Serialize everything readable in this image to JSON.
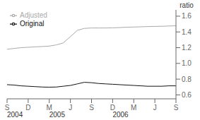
{
  "chart_data": {
    "type": "line",
    "y_label": "ratio",
    "x": [
      0,
      0.33,
      0.66,
      1,
      1.33,
      1.66,
      2,
      2.33,
      2.66,
      3,
      3.33,
      3.66,
      4,
      4.33,
      4.66,
      5,
      5.33,
      5.66,
      6,
      6.33,
      6.66,
      7,
      7.33,
      7.66,
      8
    ],
    "series": [
      {
        "name": "Original",
        "color": "#111111",
        "values": [
          0.73,
          0.725,
          0.715,
          0.71,
          0.705,
          0.7,
          0.698,
          0.7,
          0.71,
          0.72,
          0.74,
          0.76,
          0.755,
          0.745,
          0.74,
          0.735,
          0.73,
          0.725,
          0.72,
          0.715,
          0.71,
          0.71,
          0.71,
          0.715,
          0.715
        ]
      },
      {
        "name": "Adjusted",
        "color": "#aaaaaa",
        "values": [
          1.18,
          1.19,
          1.2,
          1.205,
          1.21,
          1.215,
          1.22,
          1.235,
          1.26,
          1.34,
          1.42,
          1.445,
          1.45,
          1.45,
          1.45,
          1.452,
          1.455,
          1.46,
          1.462,
          1.465,
          1.468,
          1.47,
          1.472,
          1.475,
          1.478
        ]
      }
    ],
    "xlim": [
      0,
      8
    ],
    "xticks": [
      {
        "value": 0,
        "label": "S"
      },
      {
        "value": 1,
        "label": "D"
      },
      {
        "value": 2,
        "label": "M"
      },
      {
        "value": 3,
        "label": "J"
      },
      {
        "value": 4,
        "label": "S"
      },
      {
        "value": 5,
        "label": "D"
      },
      {
        "value": 6,
        "label": "M"
      },
      {
        "value": 7,
        "label": "J"
      },
      {
        "value": 8,
        "label": "S"
      }
    ],
    "ylim": [
      0.55,
      1.68
    ],
    "yticks": [
      0.6,
      0.8,
      {
        "value": 1.0,
        "label": "1.0"
      },
      1.2,
      1.4,
      1.6
    ],
    "annotations": [
      {
        "text": "2004",
        "x": 0
      },
      {
        "text": "2005",
        "x": 2
      },
      {
        "text": "2006",
        "x": 5
      }
    ],
    "legend": "upper left",
    "grid": false
  }
}
